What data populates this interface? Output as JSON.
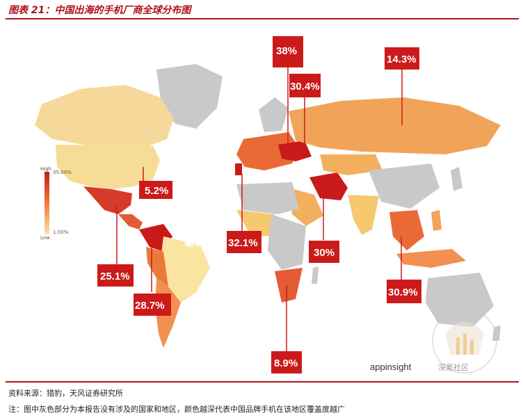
{
  "title": "图表 21：中国出海的手机厂商全球分布图",
  "legend": {
    "high": "High",
    "high_value": "35.00%",
    "low": "Low",
    "low_value": "1.00%"
  },
  "callouts": [
    {
      "country": "白俄罗斯",
      "value": "38%"
    },
    {
      "country": "乌克兰",
      "value": "30.4%"
    },
    {
      "country": "俄罗斯",
      "value": "14.3%"
    },
    {
      "country": "美国",
      "value": "5.2%"
    },
    {
      "country": "葡萄牙",
      "value": "32.1%"
    },
    {
      "country": "墨西哥",
      "value": "25.1%"
    },
    {
      "country": "哥伦比亚",
      "value": "28.7%"
    },
    {
      "country": "伊朗",
      "value": "30%"
    },
    {
      "country": "马来西亚",
      "value": "30.9%"
    },
    {
      "country": "南非",
      "value": "8.9%"
    }
  ],
  "brand": "appinsight",
  "watermark_text": "深氪社区",
  "source": "资料来源：猎豹，天风证券研究所",
  "note": "注：图中灰色部分为本报告没有涉及的国家和地区，颜色越深代表中国品牌手机在该地区覆盖度越广",
  "colors": {
    "accent": "#b0121b",
    "callout": "#cc1a1a",
    "no_data": "#c9c9c9"
  }
}
